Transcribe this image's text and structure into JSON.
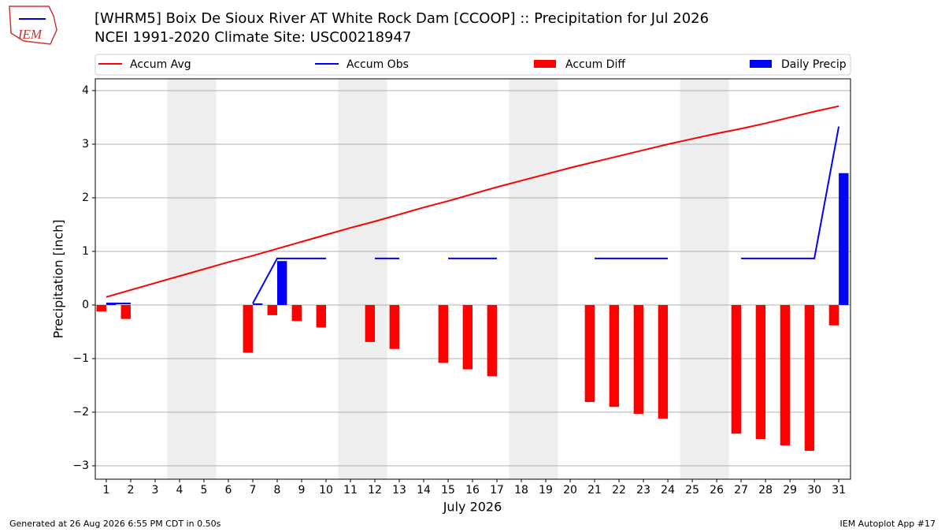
{
  "logo": "IEM",
  "footer_left": "Generated at 26 Aug 2026 6:55 PM CDT in 0.50s",
  "footer_right": "IEM Autoplot App #17",
  "chart_data": {
    "type": "bar_line",
    "title": "[WHRM5] Boix De Sioux River  AT White Rock Dam [CCOOP] :: Precipitation for Jul 2026",
    "subtitle": "NCEI 1991-2020 Climate Site: USC00218947",
    "xlabel": "July 2026",
    "ylabel": "Precipitation [inch]",
    "x": [
      1,
      2,
      3,
      4,
      5,
      6,
      7,
      8,
      9,
      10,
      11,
      12,
      13,
      14,
      15,
      16,
      17,
      18,
      19,
      20,
      21,
      22,
      23,
      24,
      25,
      26,
      27,
      28,
      29,
      30,
      31
    ],
    "xlim": [
      0.55,
      31.48
    ],
    "xticks": [
      1,
      2,
      3,
      4,
      5,
      6,
      7,
      8,
      9,
      10,
      11,
      12,
      13,
      14,
      15,
      16,
      17,
      18,
      19,
      20,
      21,
      22,
      23,
      24,
      25,
      26,
      27,
      28,
      29,
      30,
      31
    ],
    "ylim": [
      -3.25,
      4.22
    ],
    "yticks": [
      {
        "value": -3,
        "label": "−3"
      },
      {
        "value": -2,
        "label": "−2"
      },
      {
        "value": -1,
        "label": "−1"
      },
      0,
      1,
      2,
      3,
      4
    ],
    "grid": true,
    "shaded": [
      [
        3.5,
        5.5
      ],
      [
        10.5,
        12.5
      ],
      [
        17.5,
        19.5
      ],
      [
        24.5,
        26.5
      ]
    ],
    "shade_color": "#eeeeee",
    "series": [
      {
        "name": "Accum Avg",
        "kind": "line",
        "color": "#ff0000",
        "values": [
          0.15,
          0.28,
          0.41,
          0.54,
          0.67,
          0.8,
          0.92,
          1.05,
          1.18,
          1.31,
          1.44,
          1.56,
          1.69,
          1.82,
          1.94,
          2.07,
          2.2,
          2.32,
          2.44,
          2.56,
          2.67,
          2.78,
          2.89,
          3.0,
          3.1,
          3.2,
          3.29,
          3.39,
          3.5,
          3.61,
          3.71
        ]
      },
      {
        "name": "Accum Obs",
        "kind": "line",
        "color": "#0000ff",
        "values": [
          0.03,
          0.03,
          null,
          null,
          null,
          null,
          0.03,
          0.87,
          0.87,
          0.87,
          null,
          0.87,
          0.87,
          null,
          0.87,
          0.87,
          0.87,
          null,
          null,
          null,
          0.87,
          0.87,
          0.87,
          0.87,
          null,
          null,
          0.87,
          0.87,
          0.87,
          0.87,
          3.33
        ]
      },
      {
        "name": "Accum Diff",
        "kind": "bar",
        "offset": -0.2,
        "color": "#ff0000",
        "values": [
          -0.12,
          -0.26,
          null,
          null,
          null,
          null,
          -0.89,
          -0.19,
          -0.3,
          -0.42,
          null,
          -0.69,
          -0.82,
          null,
          -1.08,
          -1.2,
          -1.33,
          null,
          null,
          null,
          -1.81,
          -1.9,
          -2.03,
          -2.12,
          null,
          null,
          -2.4,
          -2.5,
          -2.62,
          -2.72,
          -0.38
        ]
      },
      {
        "name": "Daily Precip",
        "kind": "bar",
        "offset": 0.2,
        "color": "#0000ff",
        "values": [
          0.03,
          0,
          null,
          null,
          null,
          null,
          0.03,
          0.82,
          0,
          0,
          null,
          0,
          0,
          null,
          0,
          0,
          0,
          null,
          null,
          null,
          0,
          0,
          0,
          0,
          null,
          null,
          0,
          0,
          0,
          0,
          2.46
        ]
      }
    ]
  }
}
